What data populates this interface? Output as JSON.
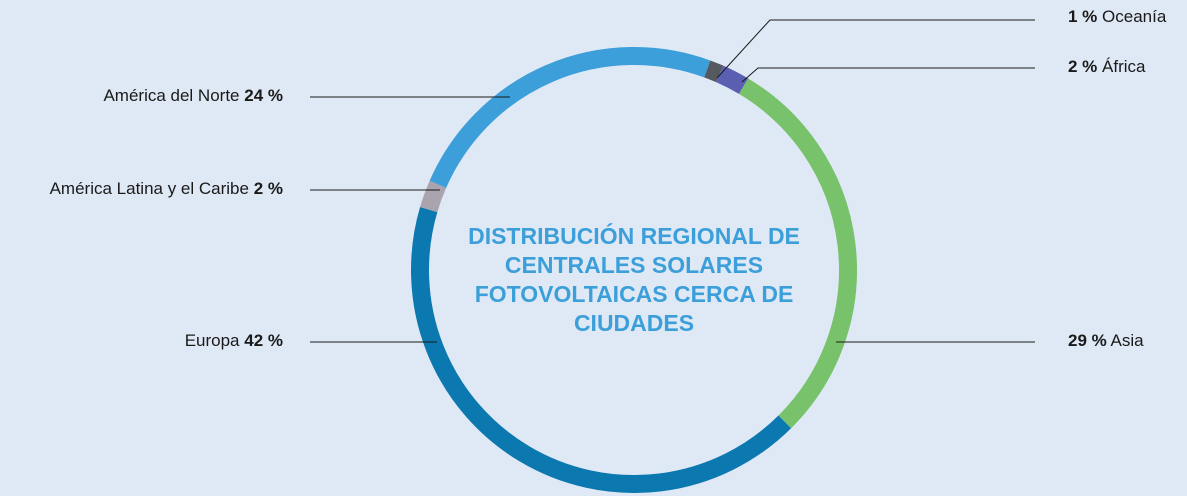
{
  "chart_data": {
    "type": "donut",
    "title": "DISTRIBUCIÓN REGIONAL DE CENTRALES SOLARES FOTOVOLTAICAS CERCA DE CIUDADES",
    "categories": [
      "Oceanía",
      "África",
      "Asia",
      "Europa",
      "América Latina y el Caribe",
      "América del Norte"
    ],
    "values": [
      1,
      2,
      29,
      42,
      2,
      24
    ],
    "value_labels": [
      "1 %",
      "2 %",
      "29 %",
      "42 %",
      "2 %",
      "24 %"
    ],
    "colors": [
      "#54595f",
      "#5a5fb2",
      "#77c26a",
      "#0b78b0",
      "#a9a4ad",
      "#3c9fd9"
    ]
  }
}
